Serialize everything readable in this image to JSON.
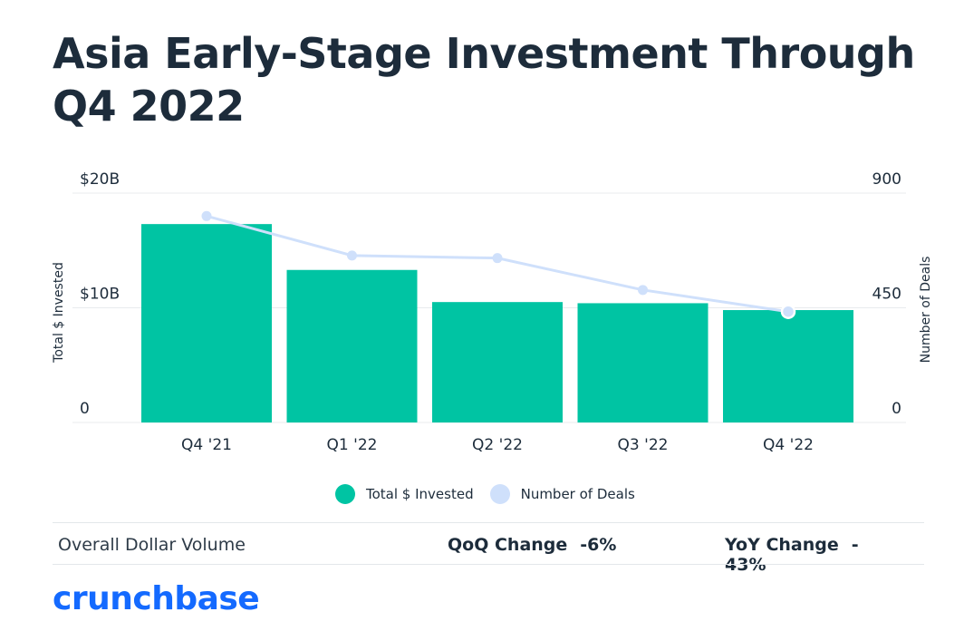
{
  "title": "Asia Early-Stage Investment Through Q4 2022",
  "colors": {
    "bar": "#00c4a3",
    "line": "#cfe0fb",
    "text": "#1d2c3b",
    "grid": "#e8ebee",
    "brand": "#146aff"
  },
  "chart_data": {
    "type": "bar",
    "categories": [
      "Q4 '21",
      "Q1 '22",
      "Q2 '22",
      "Q3 '22",
      "Q4 '22"
    ],
    "series": [
      {
        "name": "Total $ Invested",
        "type": "bar",
        "axis": "left",
        "values": [
          17.3,
          13.3,
          10.5,
          10.4,
          9.8
        ]
      },
      {
        "name": "Number of Deals",
        "type": "line",
        "axis": "right",
        "values": [
          810,
          655,
          645,
          520,
          435
        ]
      }
    ],
    "ylabel": "Total $ Invested",
    "ylim": [
      0,
      20
    ],
    "y_ticks": [
      "0",
      "$10B",
      "$20B"
    ],
    "y2label": "Number of Deals",
    "y2lim": [
      0,
      900
    ],
    "y2_ticks": [
      "0",
      "450",
      "900"
    ],
    "grid": true,
    "legend": "bottom"
  },
  "legend": {
    "items": [
      "Total $ Invested",
      "Number of Deals"
    ]
  },
  "stats": {
    "volume_label": "Overall Dollar Volume",
    "qoq_label": "QoQ Change",
    "qoq_value": "-6%",
    "yoy_label": "YoY Change",
    "yoy_value": "-43%"
  },
  "brand": "crunchbase"
}
